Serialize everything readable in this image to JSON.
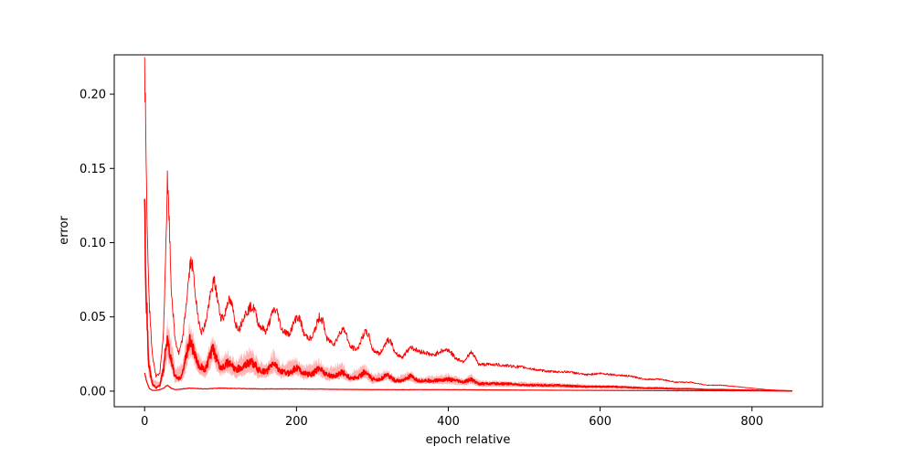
{
  "chart_data": {
    "type": "line",
    "xlabel": "epoch relative",
    "ylabel": "error",
    "xlim": [
      -40,
      893
    ],
    "ylim": [
      -0.0105,
      0.2265
    ],
    "xticks": [
      0,
      200,
      400,
      600,
      800
    ],
    "yticks": [
      0.0,
      0.05,
      0.1,
      0.15,
      0.2
    ],
    "xtick_labels": [
      "0",
      "200",
      "400",
      "600",
      "800"
    ],
    "ytick_labels": [
      "0.00",
      "0.05",
      "0.10",
      "0.15",
      "0.20"
    ],
    "grid": false,
    "legend": "none",
    "x_end": 853,
    "colors": {
      "line": "#ff0000",
      "band": "#ffb3b3"
    },
    "series": [
      {
        "role": "upper",
        "points": [
          [
            0,
            0.215
          ],
          [
            1,
            0.19
          ],
          [
            3,
            0.12
          ],
          [
            6,
            0.06
          ],
          [
            10,
            0.025
          ],
          [
            15,
            0.01
          ],
          [
            20,
            0.012
          ],
          [
            25,
            0.04
          ],
          [
            28,
            0.1
          ],
          [
            30,
            0.14
          ],
          [
            32,
            0.12
          ],
          [
            35,
            0.07
          ],
          [
            40,
            0.035
          ],
          [
            45,
            0.025
          ],
          [
            50,
            0.035
          ],
          [
            55,
            0.06
          ],
          [
            60,
            0.085
          ],
          [
            62,
            0.088
          ],
          [
            65,
            0.075
          ],
          [
            70,
            0.05
          ],
          [
            75,
            0.04
          ],
          [
            80,
            0.045
          ],
          [
            85,
            0.06
          ],
          [
            90,
            0.072
          ],
          [
            92,
            0.074
          ],
          [
            95,
            0.065
          ],
          [
            100,
            0.05
          ],
          [
            105,
            0.05
          ],
          [
            110,
            0.062
          ],
          [
            115,
            0.058
          ],
          [
            120,
            0.045
          ],
          [
            125,
            0.042
          ],
          [
            130,
            0.05
          ],
          [
            140,
            0.057
          ],
          [
            145,
            0.055
          ],
          [
            150,
            0.045
          ],
          [
            160,
            0.04
          ],
          [
            170,
            0.055
          ],
          [
            175,
            0.053
          ],
          [
            180,
            0.042
          ],
          [
            190,
            0.038
          ],
          [
            200,
            0.05
          ],
          [
            205,
            0.048
          ],
          [
            210,
            0.038
          ],
          [
            220,
            0.035
          ],
          [
            230,
            0.05
          ],
          [
            235,
            0.047
          ],
          [
            240,
            0.035
          ],
          [
            250,
            0.032
          ],
          [
            260,
            0.042
          ],
          [
            265,
            0.04
          ],
          [
            270,
            0.03
          ],
          [
            280,
            0.028
          ],
          [
            290,
            0.04
          ],
          [
            295,
            0.038
          ],
          [
            300,
            0.028
          ],
          [
            310,
            0.025
          ],
          [
            320,
            0.035
          ],
          [
            325,
            0.033
          ],
          [
            330,
            0.025
          ],
          [
            340,
            0.023
          ],
          [
            350,
            0.03
          ],
          [
            360,
            0.027
          ],
          [
            370,
            0.026
          ],
          [
            380,
            0.024
          ],
          [
            390,
            0.027
          ],
          [
            400,
            0.028
          ],
          [
            410,
            0.022
          ],
          [
            420,
            0.02
          ],
          [
            430,
            0.026
          ],
          [
            435,
            0.023
          ],
          [
            440,
            0.018
          ],
          [
            460,
            0.018
          ],
          [
            480,
            0.017
          ],
          [
            500,
            0.016
          ],
          [
            520,
            0.014
          ],
          [
            540,
            0.013
          ],
          [
            560,
            0.013
          ],
          [
            580,
            0.011
          ],
          [
            600,
            0.012
          ],
          [
            620,
            0.011
          ],
          [
            640,
            0.01
          ],
          [
            660,
            0.008
          ],
          [
            680,
            0.008
          ],
          [
            700,
            0.006
          ],
          [
            720,
            0.006
          ],
          [
            740,
            0.004
          ],
          [
            760,
            0.004
          ],
          [
            780,
            0.003
          ],
          [
            800,
            0.002
          ],
          [
            820,
            0.001
          ],
          [
            840,
            0.0005
          ],
          [
            853,
            0.0003
          ]
        ]
      },
      {
        "role": "mean",
        "points": [
          [
            0,
            0.118
          ],
          [
            2,
            0.07
          ],
          [
            5,
            0.02
          ],
          [
            10,
            0.005
          ],
          [
            15,
            0.002
          ],
          [
            20,
            0.004
          ],
          [
            25,
            0.015
          ],
          [
            28,
            0.03
          ],
          [
            30,
            0.033
          ],
          [
            33,
            0.025
          ],
          [
            40,
            0.01
          ],
          [
            45,
            0.008
          ],
          [
            50,
            0.012
          ],
          [
            55,
            0.025
          ],
          [
            60,
            0.035
          ],
          [
            63,
            0.03
          ],
          [
            70,
            0.018
          ],
          [
            80,
            0.014
          ],
          [
            85,
            0.022
          ],
          [
            90,
            0.028
          ],
          [
            95,
            0.022
          ],
          [
            100,
            0.016
          ],
          [
            110,
            0.019
          ],
          [
            115,
            0.017
          ],
          [
            120,
            0.014
          ],
          [
            130,
            0.017
          ],
          [
            140,
            0.02
          ],
          [
            145,
            0.018
          ],
          [
            150,
            0.014
          ],
          [
            160,
            0.013
          ],
          [
            170,
            0.019
          ],
          [
            180,
            0.013
          ],
          [
            190,
            0.012
          ],
          [
            200,
            0.016
          ],
          [
            210,
            0.012
          ],
          [
            220,
            0.011
          ],
          [
            230,
            0.016
          ],
          [
            240,
            0.011
          ],
          [
            250,
            0.01
          ],
          [
            260,
            0.013
          ],
          [
            270,
            0.009
          ],
          [
            280,
            0.009
          ],
          [
            290,
            0.013
          ],
          [
            300,
            0.008
          ],
          [
            310,
            0.008
          ],
          [
            320,
            0.011
          ],
          [
            330,
            0.007
          ],
          [
            340,
            0.007
          ],
          [
            350,
            0.01
          ],
          [
            360,
            0.007
          ],
          [
            380,
            0.007
          ],
          [
            400,
            0.008
          ],
          [
            420,
            0.006
          ],
          [
            430,
            0.008
          ],
          [
            440,
            0.005
          ],
          [
            460,
            0.005
          ],
          [
            480,
            0.005
          ],
          [
            500,
            0.004
          ],
          [
            520,
            0.004
          ],
          [
            540,
            0.004
          ],
          [
            560,
            0.0035
          ],
          [
            580,
            0.003
          ],
          [
            600,
            0.003
          ],
          [
            620,
            0.003
          ],
          [
            640,
            0.0025
          ],
          [
            660,
            0.002
          ],
          [
            680,
            0.002
          ],
          [
            700,
            0.0015
          ],
          [
            720,
            0.0015
          ],
          [
            740,
            0.001
          ],
          [
            760,
            0.001
          ],
          [
            780,
            0.0008
          ],
          [
            800,
            0.0006
          ],
          [
            820,
            0.0004
          ],
          [
            840,
            0.0002
          ],
          [
            853,
            0.0001
          ]
        ]
      },
      {
        "role": "lower",
        "points": [
          [
            0,
            0.012
          ],
          [
            3,
            0.006
          ],
          [
            6,
            0.002
          ],
          [
            10,
            0.0005
          ],
          [
            15,
            0.0005
          ],
          [
            20,
            0.001
          ],
          [
            25,
            0.002
          ],
          [
            30,
            0.004
          ],
          [
            35,
            0.002
          ],
          [
            40,
            0.001
          ],
          [
            60,
            0.002
          ],
          [
            80,
            0.0015
          ],
          [
            100,
            0.002
          ],
          [
            150,
            0.0015
          ],
          [
            200,
            0.0015
          ],
          [
            300,
            0.001
          ],
          [
            400,
            0.001
          ],
          [
            500,
            0.0007
          ],
          [
            600,
            0.0005
          ],
          [
            700,
            0.0003
          ],
          [
            800,
            0.0002
          ],
          [
            853,
            0.0001
          ]
        ]
      },
      {
        "role": "band_upper",
        "points": [
          [
            0,
            0.12
          ],
          [
            5,
            0.03
          ],
          [
            10,
            0.008
          ],
          [
            20,
            0.006
          ],
          [
            25,
            0.02
          ],
          [
            30,
            0.045
          ],
          [
            35,
            0.035
          ],
          [
            40,
            0.015
          ],
          [
            50,
            0.018
          ],
          [
            55,
            0.035
          ],
          [
            60,
            0.045
          ],
          [
            65,
            0.038
          ],
          [
            70,
            0.025
          ],
          [
            80,
            0.02
          ],
          [
            90,
            0.035
          ],
          [
            95,
            0.03
          ],
          [
            100,
            0.022
          ],
          [
            110,
            0.026
          ],
          [
            120,
            0.02
          ],
          [
            140,
            0.028
          ],
          [
            150,
            0.02
          ],
          [
            160,
            0.018
          ],
          [
            170,
            0.026
          ],
          [
            180,
            0.018
          ],
          [
            200,
            0.022
          ],
          [
            210,
            0.016
          ],
          [
            230,
            0.021
          ],
          [
            240,
            0.015
          ],
          [
            260,
            0.018
          ],
          [
            270,
            0.012
          ],
          [
            290,
            0.017
          ],
          [
            300,
            0.011
          ],
          [
            320,
            0.014
          ],
          [
            330,
            0.009
          ],
          [
            350,
            0.013
          ],
          [
            360,
            0.009
          ],
          [
            400,
            0.011
          ],
          [
            420,
            0.008
          ],
          [
            430,
            0.011
          ],
          [
            440,
            0.007
          ],
          [
            500,
            0.006
          ],
          [
            560,
            0.005
          ],
          [
            600,
            0.004
          ],
          [
            660,
            0.003
          ],
          [
            700,
            0.0025
          ],
          [
            760,
            0.0015
          ],
          [
            800,
            0.001
          ],
          [
            853,
            0.0002
          ]
        ]
      },
      {
        "role": "band_lower",
        "points": [
          [
            0,
            0.115
          ],
          [
            5,
            0.012
          ],
          [
            10,
            0.003
          ],
          [
            20,
            0.002
          ],
          [
            25,
            0.01
          ],
          [
            30,
            0.022
          ],
          [
            35,
            0.016
          ],
          [
            40,
            0.006
          ],
          [
            50,
            0.007
          ],
          [
            55,
            0.016
          ],
          [
            60,
            0.025
          ],
          [
            65,
            0.02
          ],
          [
            70,
            0.012
          ],
          [
            80,
            0.009
          ],
          [
            90,
            0.02
          ],
          [
            95,
            0.015
          ],
          [
            100,
            0.011
          ],
          [
            110,
            0.013
          ],
          [
            120,
            0.009
          ],
          [
            140,
            0.013
          ],
          [
            150,
            0.009
          ],
          [
            160,
            0.009
          ],
          [
            170,
            0.013
          ],
          [
            180,
            0.009
          ],
          [
            200,
            0.011
          ],
          [
            210,
            0.008
          ],
          [
            230,
            0.011
          ],
          [
            240,
            0.007
          ],
          [
            260,
            0.009
          ],
          [
            270,
            0.006
          ],
          [
            290,
            0.009
          ],
          [
            300,
            0.005
          ],
          [
            320,
            0.008
          ],
          [
            330,
            0.005
          ],
          [
            350,
            0.007
          ],
          [
            360,
            0.005
          ],
          [
            400,
            0.005
          ],
          [
            420,
            0.004
          ],
          [
            430,
            0.005
          ],
          [
            440,
            0.003
          ],
          [
            500,
            0.003
          ],
          [
            560,
            0.002
          ],
          [
            600,
            0.002
          ],
          [
            660,
            0.0015
          ],
          [
            700,
            0.001
          ],
          [
            760,
            0.0006
          ],
          [
            800,
            0.0004
          ],
          [
            853,
            0.0001
          ]
        ]
      }
    ]
  }
}
